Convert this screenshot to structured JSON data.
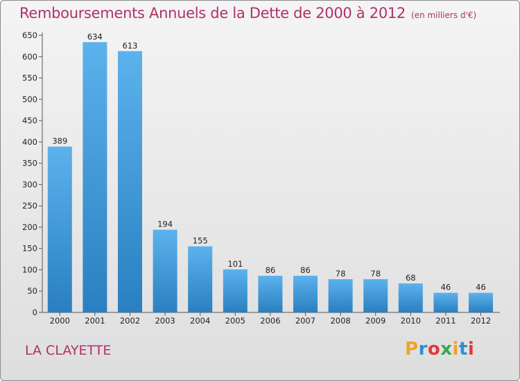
{
  "header": {
    "title": "Remboursements Annuels de la Dette de 2000 à 2012",
    "subtitle": "(en milliers d'€)"
  },
  "footer": {
    "commune": "LA CLAYETTE",
    "logo_text": "Proxiti"
  },
  "colors": {
    "title": "#b0306a",
    "bar_top": "#5cb2ec",
    "bar_bottom": "#2a7fc0",
    "logo_letters": [
      "#f0a22a",
      "#2f8fd0",
      "#e23a3a",
      "#38a84a",
      "#f0a22a",
      "#2f8fd0",
      "#e23a3a"
    ]
  },
  "chart_data": {
    "type": "bar",
    "categories": [
      "2000",
      "2001",
      "2002",
      "2003",
      "2004",
      "2005",
      "2006",
      "2007",
      "2008",
      "2009",
      "2010",
      "2011",
      "2012"
    ],
    "values": [
      389,
      634,
      613,
      194,
      155,
      101,
      86,
      86,
      78,
      78,
      68,
      46,
      46
    ],
    "title": "Remboursements Annuels de la Dette de 2000 à 2012",
    "subtitle": "(en milliers d'€)",
    "ylim": [
      0,
      650
    ],
    "yticks": [
      0,
      50,
      100,
      150,
      200,
      250,
      300,
      350,
      400,
      450,
      500,
      550,
      600,
      650
    ],
    "grid": false,
    "data_labels": true
  }
}
